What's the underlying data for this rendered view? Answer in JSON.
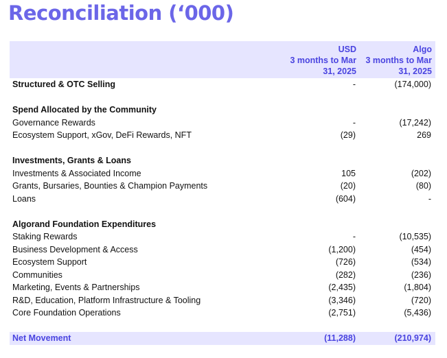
{
  "title": "Reconciliation (‘000)",
  "header": {
    "usd": [
      "USD",
      "3 months to Mar",
      "31, 2025"
    ],
    "algo": [
      "Algo",
      "3 months to Mar",
      "31, 2025"
    ]
  },
  "rows": {
    "structured": {
      "label": "Structured & OTC Selling",
      "usd": "-",
      "algo": "(174,000)"
    },
    "spend_header": {
      "label": "Spend Allocated by the Community"
    },
    "governance": {
      "label": "Governance Rewards",
      "usd": "-",
      "algo": "(17,242)"
    },
    "ecosystem_xgov": {
      "label": "Ecosystem Support, xGov, DeFi Rewards, NFT",
      "usd": "(29)",
      "algo": "269"
    },
    "invest_header": {
      "label": "Investments, Grants & Loans"
    },
    "investments": {
      "label": "Investments & Associated Income",
      "usd": "105",
      "algo": "(202)"
    },
    "grants": {
      "label": "Grants, Bursaries, Bounties & Champion Payments",
      "usd": "(20)",
      "algo": "(80)"
    },
    "loans": {
      "label": "Loans",
      "usd": "(604)",
      "algo": "-"
    },
    "foundation_header": {
      "label": "Algorand Foundation Expenditures"
    },
    "staking": {
      "label": "Staking Rewards",
      "usd": "-",
      "algo": "(10,535)"
    },
    "bizdev": {
      "label": "Business Development & Access",
      "usd": "(1,200)",
      "algo": "(454)"
    },
    "eco_support": {
      "label": "Ecosystem Support",
      "usd": "(726)",
      "algo": "(534)"
    },
    "communities": {
      "label": "Communities",
      "usd": "(282)",
      "algo": "(236)"
    },
    "marketing": {
      "label": "Marketing, Events & Partnerships",
      "usd": "(2,435)",
      "algo": "(1,804)"
    },
    "rnd": {
      "label": "R&D, Education, Platform Infrastructure & Tooling",
      "usd": "(3,346)",
      "algo": "(720)"
    },
    "core": {
      "label": "Core Foundation Operations",
      "usd": "(2,751)",
      "algo": "(5,436)"
    },
    "net": {
      "label": "Net Movement",
      "usd": "(11,288)",
      "algo": "(210,974)"
    }
  },
  "colors": {
    "accent": "#6b66e8",
    "header_text": "#4a44e0",
    "band": "#e6e5ff"
  }
}
